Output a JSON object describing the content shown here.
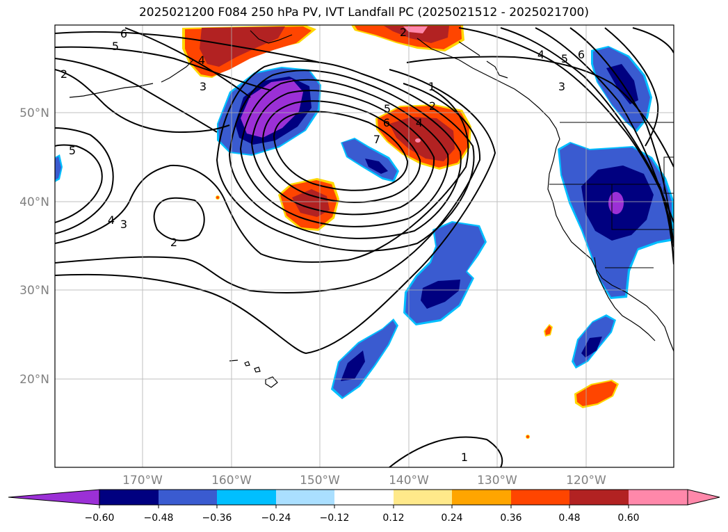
{
  "title": "2025021200 F084 250 hPa PV, IVT Landfall PC (2025021512 - 2025021700)",
  "map": {
    "lon_ticks": [
      "170°W",
      "160°W",
      "150°W",
      "140°W",
      "130°W",
      "120°W"
    ],
    "lat_ticks": [
      "50°N",
      "40°N",
      "30°N",
      "20°N"
    ]
  },
  "contour_labels": [
    {
      "text": "6"
    },
    {
      "text": "5"
    },
    {
      "text": "2"
    },
    {
      "text": "4"
    },
    {
      "text": "3"
    },
    {
      "text": "5"
    },
    {
      "text": "4"
    },
    {
      "text": "3"
    },
    {
      "text": "2"
    },
    {
      "text": "7"
    },
    {
      "text": "6"
    },
    {
      "text": "5"
    },
    {
      "text": "4"
    },
    {
      "text": "2"
    },
    {
      "text": "1"
    },
    {
      "text": "1"
    },
    {
      "text": "2"
    },
    {
      "text": "4"
    },
    {
      "text": "5"
    },
    {
      "text": "6"
    },
    {
      "text": "3"
    }
  ],
  "colorbar": {
    "colors": [
      "#9b30d6",
      "#000080",
      "#3a5bd0",
      "#00bfff",
      "#aadfff",
      "#ffffff",
      "#ffe98a",
      "#ffa500",
      "#ff4500",
      "#b22222",
      "#ff88aa",
      "#ff88aa"
    ],
    "ticks": [
      "−0.60",
      "−0.48",
      "−0.36",
      "−0.24",
      "−0.12",
      "0.12",
      "0.24",
      "0.36",
      "0.48",
      "0.60"
    ]
  }
}
